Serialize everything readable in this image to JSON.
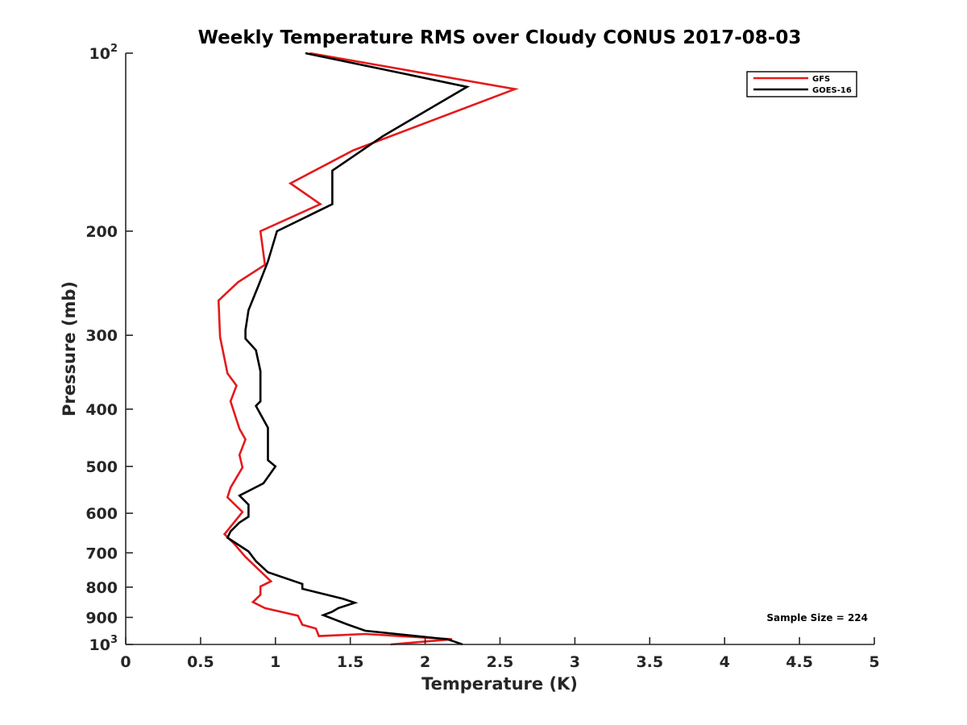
{
  "chart_data": {
    "type": "line",
    "title": "Weekly Temperature RMS over Cloudy CONUS 2017-08-03",
    "xlabel": "Temperature (K)",
    "ylabel": "Pressure (mb)",
    "xlim": [
      0,
      5
    ],
    "ylim": [
      100,
      1000
    ],
    "yscale": "log",
    "y_reversed": true,
    "x_ticks": [
      0,
      0.5,
      1,
      1.5,
      2,
      2.5,
      3,
      3.5,
      4,
      4.5,
      5
    ],
    "x_tick_labels": [
      "0",
      "0.5",
      "1",
      "1.5",
      "2",
      "2.5",
      "3",
      "3.5",
      "4",
      "4.5",
      "5"
    ],
    "y_ticks": [
      {
        "value": 100,
        "label": "10",
        "exp": "2"
      },
      {
        "value": 200,
        "label": "200",
        "exp": ""
      },
      {
        "value": 300,
        "label": "300",
        "exp": ""
      },
      {
        "value": 400,
        "label": "400",
        "exp": ""
      },
      {
        "value": 500,
        "label": "500",
        "exp": ""
      },
      {
        "value": 600,
        "label": "600",
        "exp": ""
      },
      {
        "value": 700,
        "label": "700",
        "exp": ""
      },
      {
        "value": 800,
        "label": "800",
        "exp": ""
      },
      {
        "value": 900,
        "label": "900",
        "exp": ""
      },
      {
        "value": 1000,
        "label": "10",
        "exp": "3"
      }
    ],
    "grid": false,
    "legend_position": "top-right",
    "annotation": "Sample Size = 224",
    "series": [
      {
        "name": "GFS",
        "color": "#e41a1c",
        "x": [
          1.23,
          2.6,
          1.52,
          1.1,
          1.3,
          0.9,
          0.93,
          0.75,
          0.62,
          0.63,
          0.68,
          0.74,
          0.7,
          0.76,
          0.8,
          0.76,
          0.78,
          0.7,
          0.68,
          0.75,
          0.78,
          0.66,
          0.72,
          0.8,
          0.97,
          0.9,
          0.9,
          0.85,
          0.93,
          1.15,
          1.18,
          1.27,
          1.29,
          1.6,
          2.18,
          1.77
        ],
        "y": [
          100,
          115,
          146,
          166,
          180,
          200,
          228,
          244,
          262,
          302,
          348,
          365,
          388,
          432,
          450,
          478,
          502,
          543,
          564,
          587,
          597,
          651,
          674,
          711,
          782,
          798,
          824,
          848,
          868,
          894,
          926,
          940,
          968,
          960,
          980,
          1000
        ]
      },
      {
        "name": "GOES-16",
        "color": "#000000",
        "x": [
          1.2,
          2.28,
          1.72,
          1.38,
          1.38,
          1.01,
          0.95,
          0.89,
          0.82,
          0.8,
          0.8,
          0.87,
          0.9,
          0.9,
          0.87,
          0.95,
          0.95,
          1.0,
          0.92,
          0.76,
          0.82,
          0.82,
          0.76,
          0.7,
          0.68,
          0.82,
          0.87,
          0.95,
          1.18,
          1.18,
          1.45,
          1.53,
          1.42,
          1.38,
          1.32,
          1.48,
          1.6,
          2.15,
          2.2,
          2.25
        ],
        "y": [
          100,
          114,
          138,
          158,
          180,
          200,
          225,
          246,
          272,
          294,
          304,
          318,
          345,
          388,
          395,
          430,
          488,
          500,
          534,
          560,
          580,
          608,
          622,
          644,
          660,
          696,
          723,
          755,
          790,
          805,
          837,
          850,
          868,
          880,
          892,
          925,
          948,
          980,
          990,
          1000
        ]
      }
    ]
  }
}
